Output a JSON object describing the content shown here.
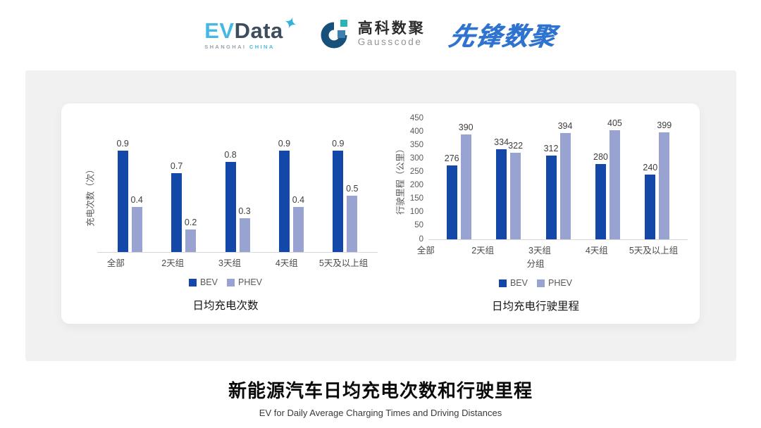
{
  "header": {
    "evdata": {
      "wordmark_ev": "EV",
      "wordmark_data": "Data",
      "tagline_shanghai": "SHANGHAI",
      "tagline_china": "CHINA",
      "accent_color": "#45b8e6",
      "dark_color": "#3d4d5d"
    },
    "gausscode": {
      "name_cn": "高科数聚",
      "name_en": "Gausscode",
      "mark_dark_color": "#17507a",
      "mark_blue_color": "#3d7fae",
      "mark_teal_color": "#2cb3b4"
    },
    "pioneer": {
      "name": "先锋数聚",
      "color": "#2e73cf"
    }
  },
  "chart_data": [
    {
      "type": "bar",
      "title": "日均充电次数",
      "ylabel": "充电次数（次）",
      "xlabel": "",
      "categories": [
        "全部",
        "2天组",
        "3天组",
        "4天组",
        "5天及以上组"
      ],
      "series": [
        {
          "name": "BEV",
          "color": "#1347a8",
          "values": [
            0.9,
            0.7,
            0.8,
            0.9,
            0.9
          ]
        },
        {
          "name": "PHEV",
          "color": "#99a3d2",
          "values": [
            0.4,
            0.2,
            0.3,
            0.4,
            0.5
          ]
        }
      ],
      "ylim": [
        0,
        1.0
      ],
      "yticks": [],
      "grid": false,
      "value_labels": true,
      "legend_position": "bottom"
    },
    {
      "type": "bar",
      "title": "日均充电行驶里程",
      "ylabel": "行驶里程（公里）",
      "xlabel": "分组",
      "categories": [
        "全部",
        "2天组",
        "3天组",
        "4天组",
        "5天及以上组"
      ],
      "series": [
        {
          "name": "BEV",
          "color": "#1347a8",
          "values": [
            276,
            334,
            312,
            280,
            240
          ]
        },
        {
          "name": "PHEV",
          "color": "#99a3d2",
          "values": [
            390,
            322,
            394,
            405,
            399
          ]
        }
      ],
      "ylim": [
        0,
        450
      ],
      "yticks": [
        0,
        50,
        100,
        150,
        200,
        250,
        300,
        350,
        400,
        450
      ],
      "grid": false,
      "value_labels": true,
      "legend_position": "bottom"
    }
  ],
  "footer": {
    "title": "新能源汽车日均充电次数和行驶里程",
    "subtitle": "EV for Daily Average Charging Times and Driving Distances"
  }
}
